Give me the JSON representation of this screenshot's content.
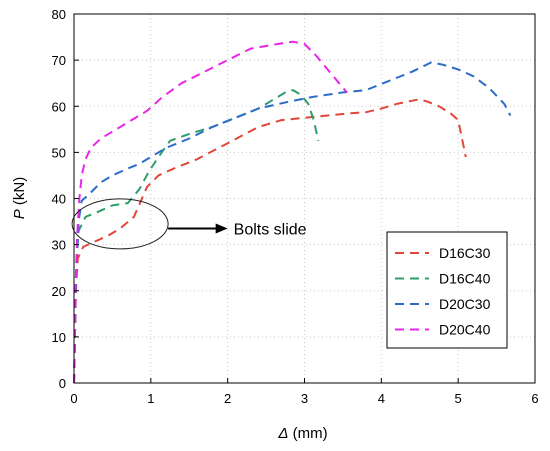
{
  "chart_data": {
    "type": "line",
    "title": "",
    "xlabel": {
      "symbol": "Δ",
      "unit": " (mm)"
    },
    "ylabel": {
      "symbol": "P",
      "unit": " (kN)"
    },
    "xlim": [
      0,
      6
    ],
    "ylim": [
      0,
      80
    ],
    "xticks": [
      0,
      1,
      2,
      3,
      4,
      5,
      6
    ],
    "yticks": [
      0,
      10,
      20,
      30,
      40,
      50,
      60,
      70,
      80
    ],
    "grid": true,
    "grid_style": "dotted",
    "legend_position": "bottom-right",
    "line_style": "dashed",
    "series": [
      {
        "name": "D16C30",
        "color": "#e0473a",
        "x": [
          0.0,
          0.01,
          0.02,
          0.03,
          0.05,
          0.12,
          0.25,
          0.45,
          0.6,
          0.78,
          0.95,
          1.1,
          1.3,
          1.6,
          2.0,
          2.4,
          2.7,
          3.0,
          3.3,
          3.6,
          3.8,
          4.0,
          4.2,
          4.4,
          4.5,
          4.6,
          4.75,
          4.9,
          5.0,
          5.05,
          5.1
        ],
        "y": [
          0.0,
          8.0,
          16.0,
          22.0,
          27.0,
          29.5,
          30.5,
          32.0,
          33.5,
          36.0,
          42.5,
          45.0,
          46.5,
          48.5,
          52.0,
          55.5,
          57.0,
          57.5,
          58.0,
          58.5,
          58.7,
          59.5,
          60.5,
          61.2,
          61.5,
          61.0,
          60.0,
          58.5,
          57.0,
          53.0,
          49.0
        ]
      },
      {
        "name": "D16C40",
        "color": "#2f9e6b",
        "x": [
          0.0,
          0.01,
          0.02,
          0.03,
          0.06,
          0.15,
          0.3,
          0.5,
          0.7,
          0.85,
          0.98,
          1.1,
          1.25,
          1.5,
          1.8,
          2.1,
          2.4,
          2.6,
          2.75,
          2.85,
          2.95,
          3.05,
          3.12,
          3.18
        ],
        "y": [
          0.0,
          8.0,
          18.0,
          26.0,
          33.0,
          36.0,
          37.0,
          38.5,
          39.0,
          42.0,
          46.0,
          49.0,
          52.5,
          54.0,
          55.5,
          57.5,
          59.5,
          61.5,
          63.0,
          63.5,
          62.5,
          60.5,
          57.0,
          52.5
        ]
      },
      {
        "name": "D20C30",
        "color": "#2b6ccb",
        "x": [
          0.0,
          0.01,
          0.02,
          0.04,
          0.06,
          0.1,
          0.2,
          0.35,
          0.5,
          0.7,
          0.85,
          1.0,
          1.2,
          1.5,
          1.8,
          2.1,
          2.4,
          2.8,
          3.1,
          3.5,
          3.8,
          4.1,
          4.4,
          4.65,
          4.8,
          5.0,
          5.2,
          5.4,
          5.6,
          5.68
        ],
        "y": [
          0.0,
          8.0,
          18.0,
          28.0,
          35.0,
          39.5,
          41.0,
          43.5,
          45.0,
          46.5,
          47.5,
          49.0,
          51.0,
          53.0,
          55.5,
          57.5,
          59.5,
          61.0,
          62.0,
          63.0,
          63.5,
          65.5,
          67.5,
          69.5,
          69.0,
          68.0,
          66.5,
          64.0,
          60.5,
          58.0
        ]
      },
      {
        "name": "D20C40",
        "color": "#e826e8",
        "x": [
          0.0,
          0.01,
          0.02,
          0.04,
          0.07,
          0.1,
          0.15,
          0.22,
          0.35,
          0.55,
          0.75,
          0.95,
          1.15,
          1.4,
          1.7,
          2.0,
          2.3,
          2.65,
          2.85,
          3.0,
          3.15,
          3.35,
          3.55
        ],
        "y": [
          0.0,
          8.0,
          20.0,
          32.0,
          40.0,
          45.0,
          48.5,
          51.0,
          53.0,
          55.0,
          57.0,
          59.0,
          62.0,
          65.0,
          67.5,
          70.0,
          72.5,
          73.5,
          74.0,
          73.5,
          71.0,
          67.0,
          63.0
        ]
      }
    ],
    "annotation": {
      "text": "Bolts slide",
      "ellipse_center": [
        0.6,
        34.5
      ],
      "arrow_to": [
        2.0,
        33.5
      ]
    }
  }
}
